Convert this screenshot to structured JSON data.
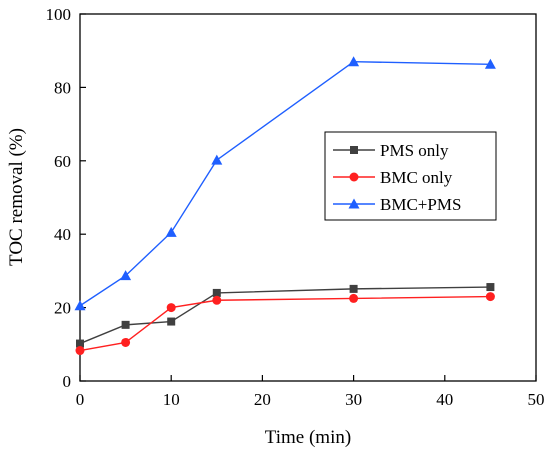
{
  "chart_data": {
    "type": "line",
    "title": "",
    "xlabel": "Time (min)",
    "ylabel": "TOC removal (%)",
    "xlim": [
      0,
      50
    ],
    "ylim": [
      0,
      100
    ],
    "xticks": [
      0,
      10,
      20,
      30,
      40,
      50
    ],
    "yticks": [
      0,
      20,
      40,
      60,
      80,
      100
    ],
    "grid": false,
    "legend_position": "center-right",
    "x": [
      0,
      5,
      10,
      15,
      30,
      45
    ],
    "series": [
      {
        "name": "PMS only",
        "color": "#404040",
        "marker": "square",
        "values": [
          10.2,
          15.3,
          16.2,
          24.0,
          25.1,
          25.6
        ]
      },
      {
        "name": "BMC only",
        "color": "#ff2020",
        "marker": "circle",
        "values": [
          8.3,
          10.5,
          20.0,
          22.0,
          22.5,
          23.0
        ]
      },
      {
        "name": "BMC+PMS",
        "color": "#1f5fff",
        "marker": "triangle",
        "values": [
          20.5,
          28.7,
          40.5,
          60.2,
          87.0,
          86.3
        ]
      }
    ]
  }
}
